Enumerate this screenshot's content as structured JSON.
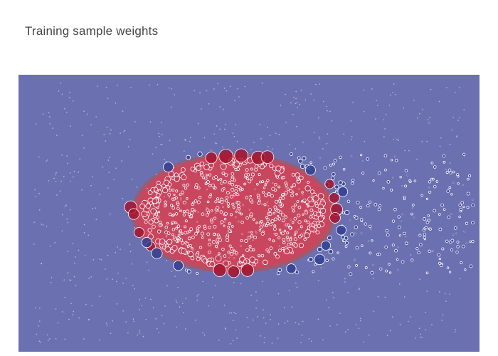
{
  "title": "Training sample weights",
  "colors": {
    "background_region": "#6a70b0",
    "positive_region": "#c8475f",
    "boundary_band": "#9e5a6e",
    "class_negative": "#2e3d94",
    "class_positive": "#a4102c",
    "marker_outline": "#ffffff"
  },
  "chart_data": {
    "type": "scatter",
    "title": "Training sample weights",
    "xlabel": "",
    "ylabel": "",
    "xlim": [
      -3,
      3
    ],
    "ylim": [
      -1.8,
      1.8
    ],
    "grid": false,
    "legend": "none",
    "background": "decision region heatmap: positive class inside ellipse centered (-0.2, 0.0) with radii (1.28, 0.74)",
    "series": [
      {
        "class": "outer",
        "marker_color": "#2e3d94",
        "generated_cloud": {
          "count": 420,
          "x_range": [
            -0.83,
            2.94
          ],
          "y_range": [
            -0.8,
            0.77
          ],
          "weight_range": [
            0.05,
            0.9
          ]
        }
      },
      {
        "class": "inner",
        "marker_color": "#a4102c",
        "generated_cloud": {
          "count": 650,
          "ellipse_center": [
            -0.2,
            0.0
          ],
          "ellipse_radii": [
            1.2,
            0.7
          ],
          "weight_range": [
            0.05,
            0.45
          ]
        }
      }
    ],
    "highlighted_points": [
      {
        "x": -0.3,
        "y": 0.74,
        "weight": 9.0,
        "class": "inner"
      },
      {
        "x": -0.1,
        "y": 0.75,
        "weight": 8.2,
        "class": "inner"
      },
      {
        "x": 0.12,
        "y": 0.72,
        "weight": 8.2,
        "class": "inner"
      },
      {
        "x": 0.24,
        "y": 0.73,
        "weight": 7.2,
        "class": "inner"
      },
      {
        "x": -0.49,
        "y": 0.72,
        "weight": 6.0,
        "class": "inner"
      },
      {
        "x": -1.54,
        "y": 0.08,
        "weight": 7.0,
        "class": "inner"
      },
      {
        "x": -1.5,
        "y": -0.01,
        "weight": 5.4,
        "class": "inner"
      },
      {
        "x": -1.43,
        "y": -0.25,
        "weight": 4.6,
        "class": "inner"
      },
      {
        "x": 1.14,
        "y": 0.05,
        "weight": 6.5,
        "class": "inner"
      },
      {
        "x": 1.12,
        "y": -0.06,
        "weight": 5.1,
        "class": "inner"
      },
      {
        "x": 1.11,
        "y": 0.2,
        "weight": 5.0,
        "class": "inner"
      },
      {
        "x": -0.38,
        "y": -0.74,
        "weight": 7.6,
        "class": "inner"
      },
      {
        "x": -0.02,
        "y": -0.74,
        "weight": 7.2,
        "class": "inner"
      },
      {
        "x": -0.2,
        "y": -0.76,
        "weight": 6.3,
        "class": "inner"
      },
      {
        "x": -1.28,
        "y": -0.43,
        "weight": 4.0,
        "class": "inner"
      },
      {
        "x": 1.05,
        "y": 0.38,
        "weight": 4.0,
        "class": "inner"
      },
      {
        "x": -1.2,
        "y": -0.52,
        "weight": 5.4,
        "class": "outer"
      },
      {
        "x": -1.33,
        "y": -0.38,
        "weight": 4.8,
        "class": "outer"
      },
      {
        "x": -1.05,
        "y": 0.6,
        "weight": 4.6,
        "class": "outer"
      },
      {
        "x": 0.8,
        "y": 0.56,
        "weight": 4.6,
        "class": "outer"
      },
      {
        "x": 0.92,
        "y": -0.6,
        "weight": 5.0,
        "class": "outer"
      },
      {
        "x": 1.22,
        "y": 0.28,
        "weight": 4.4,
        "class": "outer"
      },
      {
        "x": 1.2,
        "y": -0.22,
        "weight": 4.4,
        "class": "outer"
      },
      {
        "x": -0.92,
        "y": -0.68,
        "weight": 4.5,
        "class": "outer"
      },
      {
        "x": 0.55,
        "y": -0.72,
        "weight": 4.2,
        "class": "outer"
      },
      {
        "x": 1.0,
        "y": -0.42,
        "weight": 4.0,
        "class": "outer"
      }
    ]
  }
}
